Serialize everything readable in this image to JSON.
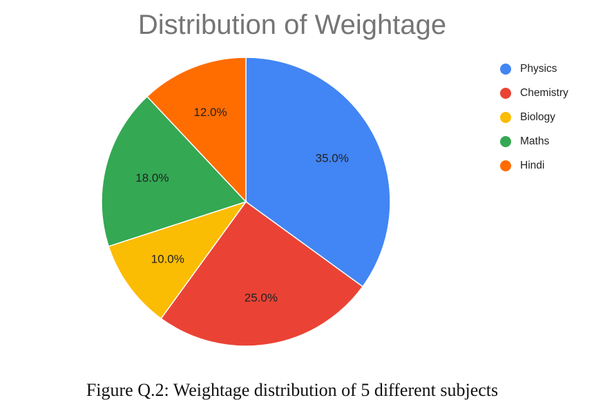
{
  "chart_data": {
    "type": "pie",
    "title": "Distribution of Weightage",
    "caption": "Figure Q.2: Weightage distribution of 5 different subjects",
    "legend_position": "right",
    "slices": [
      {
        "label": "Physics",
        "value": 35.0,
        "value_label": "35.0%",
        "color": "#4285f4"
      },
      {
        "label": "Chemistry",
        "value": 25.0,
        "value_label": "25.0%",
        "color": "#ea4335"
      },
      {
        "label": "Biology",
        "value": 10.0,
        "value_label": "10.0%",
        "color": "#fbbc04"
      },
      {
        "label": "Maths",
        "value": 18.0,
        "value_label": "18.0%",
        "color": "#34a853"
      },
      {
        "label": "Hindi",
        "value": 12.0,
        "value_label": "12.0%",
        "color": "#ff6d01"
      }
    ]
  }
}
